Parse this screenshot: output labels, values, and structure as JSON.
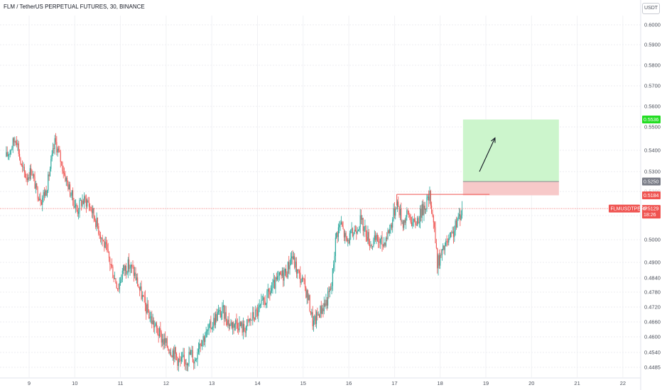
{
  "header": {
    "title": "FLM / TetherUS PERPETUAL FUTURES, 30, BINANCE"
  },
  "price_axis": {
    "unit_label": "USDT"
  },
  "chart_data": {
    "type": "candlestick",
    "symbol": "FLMUSDTPERP",
    "title": "FLM / TetherUS PERPETUAL FUTURES, 30, BINANCE",
    "y_ticks": [
      0.6,
      0.59,
      0.58,
      0.57,
      0.56,
      0.55,
      0.54,
      0.53,
      0.52,
      0.51,
      0.5,
      0.49,
      0.484,
      0.478,
      0.472,
      0.466,
      0.46,
      0.454,
      0.4485
    ],
    "y_tick_labels": [
      "0.6000",
      "0.5900",
      "0.5800",
      "0.5700",
      "0.5600",
      "0.5500",
      "0.5400",
      "0.5300",
      "0.5200",
      "0.5100",
      "0.5000",
      "0.4900",
      "0.4840",
      "0.4780",
      "0.4720",
      "0.4660",
      "0.4600",
      "0.4540",
      "0.4485"
    ],
    "x_ticks": [
      9,
      10,
      11,
      12,
      13,
      14,
      15,
      16,
      17,
      18,
      19,
      20,
      21,
      22
    ],
    "x_tick_labels": [
      "9",
      "10",
      "11",
      "12",
      "13",
      "14",
      "15",
      "16",
      "17",
      "18",
      "19",
      "20",
      "21",
      "22"
    ],
    "price_path": [
      [
        8.5,
        0.537
      ],
      [
        8.62,
        0.542
      ],
      [
        8.72,
        0.546
      ],
      [
        8.83,
        0.532
      ],
      [
        8.95,
        0.527
      ],
      [
        9.05,
        0.531
      ],
      [
        9.15,
        0.521
      ],
      [
        9.27,
        0.517
      ],
      [
        9.38,
        0.521
      ],
      [
        9.47,
        0.533
      ],
      [
        9.57,
        0.544
      ],
      [
        9.67,
        0.537
      ],
      [
        9.78,
        0.528
      ],
      [
        9.9,
        0.52
      ],
      [
        10.05,
        0.512
      ],
      [
        10.15,
        0.516
      ],
      [
        10.28,
        0.516
      ],
      [
        10.42,
        0.51
      ],
      [
        10.55,
        0.503
      ],
      [
        10.68,
        0.496
      ],
      [
        10.82,
        0.487
      ],
      [
        10.95,
        0.48
      ],
      [
        11.05,
        0.487
      ],
      [
        11.18,
        0.489
      ],
      [
        11.3,
        0.486
      ],
      [
        11.42,
        0.479
      ],
      [
        11.55,
        0.472
      ],
      [
        11.7,
        0.466
      ],
      [
        11.82,
        0.462
      ],
      [
        11.95,
        0.458
      ],
      [
        12.05,
        0.456
      ],
      [
        12.18,
        0.454
      ],
      [
        12.3,
        0.45
      ],
      [
        12.45,
        0.4515
      ],
      [
        12.55,
        0.454
      ],
      [
        12.62,
        0.4505
      ],
      [
        12.72,
        0.458
      ],
      [
        12.88,
        0.461
      ],
      [
        13.0,
        0.465
      ],
      [
        13.12,
        0.469
      ],
      [
        13.25,
        0.47
      ],
      [
        13.4,
        0.465
      ],
      [
        13.55,
        0.466
      ],
      [
        13.7,
        0.463
      ],
      [
        13.85,
        0.467
      ],
      [
        14.0,
        0.47
      ],
      [
        14.15,
        0.474
      ],
      [
        14.3,
        0.479
      ],
      [
        14.48,
        0.484
      ],
      [
        14.65,
        0.487
      ],
      [
        14.75,
        0.493
      ],
      [
        14.88,
        0.486
      ],
      [
        15.02,
        0.481
      ],
      [
        15.12,
        0.475
      ],
      [
        15.22,
        0.465
      ],
      [
        15.35,
        0.47
      ],
      [
        15.5,
        0.474
      ],
      [
        15.62,
        0.48
      ],
      [
        15.72,
        0.502
      ],
      [
        15.82,
        0.507
      ],
      [
        15.95,
        0.499
      ],
      [
        16.1,
        0.503
      ],
      [
        16.25,
        0.508
      ],
      [
        16.38,
        0.503
      ],
      [
        16.48,
        0.498
      ],
      [
        16.62,
        0.5
      ],
      [
        16.75,
        0.498
      ],
      [
        16.92,
        0.506
      ],
      [
        17.05,
        0.516
      ],
      [
        17.18,
        0.507
      ],
      [
        17.3,
        0.511
      ],
      [
        17.42,
        0.506
      ],
      [
        17.55,
        0.51
      ],
      [
        17.68,
        0.515
      ],
      [
        17.78,
        0.518
      ],
      [
        17.88,
        0.504
      ],
      [
        17.93,
        0.49
      ],
      [
        18.0,
        0.492
      ],
      [
        18.1,
        0.497
      ],
      [
        18.25,
        0.501
      ],
      [
        18.35,
        0.506
      ],
      [
        18.48,
        0.513
      ]
    ],
    "current_price": 0.5129,
    "current_price_label": "0.5129",
    "countdown_label": "18:26",
    "symbol_label": "FLMUSDTPERP",
    "resistance_level": 0.5188,
    "position": {
      "type": "long",
      "entry": 0.525,
      "entry_label": "0.5250",
      "stop": 0.5184,
      "stop_label": "0.5184",
      "target": 0.5536,
      "target_label": "0.5536",
      "x_start": 18.5,
      "x_end": 20.6
    },
    "colors": {
      "up": "#26a69a",
      "down": "#ef5350",
      "target_zone": "#ccf5cc",
      "stop_zone": "#f7c9c9",
      "target_tag": "#22dd22",
      "entry_tag": "#787b86",
      "price_tag": "#ef5350"
    }
  }
}
